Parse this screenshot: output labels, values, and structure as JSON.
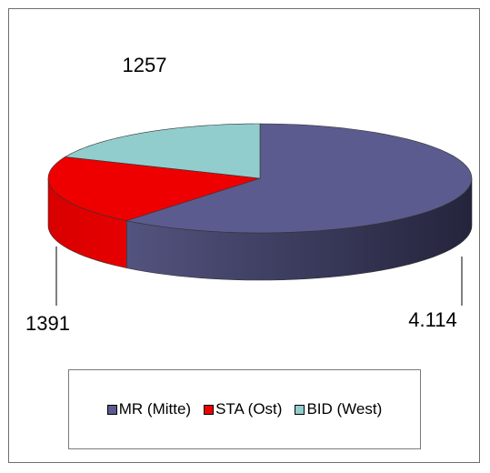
{
  "chart_data": {
    "type": "pie",
    "title": "",
    "three_d": true,
    "categories": [
      "MR (Mitte)",
      "STA (Ost)",
      "BID (West)"
    ],
    "values": [
      4114,
      1391,
      1257
    ],
    "data_labels": [
      "4.114",
      "1391",
      "1257"
    ],
    "colors": [
      "#5b5b8f",
      "#ee0000",
      "#92cdcd"
    ],
    "legend": "bottom"
  }
}
